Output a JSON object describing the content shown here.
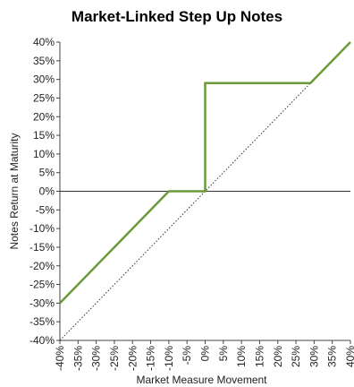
{
  "chart_data": {
    "type": "line",
    "title": "Market-Linked Step Up Notes",
    "xlabel": "Market Measure Movement",
    "ylabel": "Notes Return at Maturity",
    "xlim": [
      -40,
      40
    ],
    "ylim": [
      -40,
      40
    ],
    "x_ticks": [
      -40,
      -35,
      -30,
      -25,
      -20,
      -15,
      -10,
      -5,
      0,
      5,
      10,
      15,
      20,
      25,
      30,
      35,
      40
    ],
    "y_ticks": [
      40,
      35,
      30,
      25,
      20,
      15,
      10,
      5,
      0,
      -5,
      -10,
      -15,
      -20,
      -25,
      -30,
      -35,
      -40
    ],
    "series": [
      {
        "style": "solid",
        "color": "#6a9a3a",
        "points": [
          [
            -40,
            -30
          ],
          [
            -10,
            0
          ],
          [
            0,
            0
          ],
          [
            0,
            29
          ],
          [
            29,
            29
          ],
          [
            40,
            40
          ]
        ]
      },
      {
        "style": "dotted",
        "color": "#333333",
        "points": [
          [
            -40,
            -40
          ],
          [
            40,
            40
          ]
        ]
      }
    ],
    "zero_line": true,
    "grid": false,
    "legend": "none"
  }
}
